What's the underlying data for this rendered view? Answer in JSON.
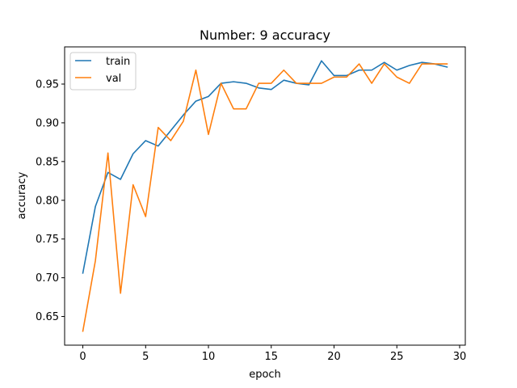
{
  "chart_data": {
    "type": "line",
    "title": "Number: 9 accuracy",
    "xlabel": "epoch",
    "ylabel": "accuracy",
    "xlim": [
      -1.45,
      30.45
    ],
    "ylim": [
      0.613,
      0.998
    ],
    "xticks": [
      0,
      5,
      10,
      15,
      20,
      25,
      30
    ],
    "yticks": [
      0.65,
      0.7,
      0.75,
      0.8,
      0.85,
      0.9,
      0.95
    ],
    "ytick_labels": [
      "0.65",
      "0.70",
      "0.75",
      "0.80",
      "0.85",
      "0.90",
      "0.95"
    ],
    "grid": false,
    "legend_position": "upper-left",
    "x": [
      0,
      1,
      2,
      3,
      4,
      5,
      6,
      7,
      8,
      9,
      10,
      11,
      12,
      13,
      14,
      15,
      16,
      17,
      18,
      19,
      20,
      21,
      22,
      23,
      24,
      25,
      26,
      27,
      28,
      29
    ],
    "series": [
      {
        "name": "train",
        "color": "#1f77b4",
        "values": [
          0.706,
          0.792,
          0.836,
          0.827,
          0.86,
          0.877,
          0.87,
          0.89,
          0.91,
          0.928,
          0.934,
          0.951,
          0.953,
          0.951,
          0.945,
          0.943,
          0.955,
          0.951,
          0.949,
          0.98,
          0.961,
          0.961,
          0.968,
          0.968,
          0.978,
          0.968,
          0.974,
          0.978,
          0.976,
          0.972
        ]
      },
      {
        "name": "val",
        "color": "#ff7f0e",
        "values": [
          0.631,
          0.722,
          0.861,
          0.68,
          0.82,
          0.779,
          0.894,
          0.877,
          0.902,
          0.968,
          0.885,
          0.951,
          0.918,
          0.918,
          0.951,
          0.951,
          0.968,
          0.951,
          0.951,
          0.951,
          0.959,
          0.959,
          0.976,
          0.951,
          0.976,
          0.959,
          0.951,
          0.976,
          0.976,
          0.976
        ]
      }
    ]
  }
}
